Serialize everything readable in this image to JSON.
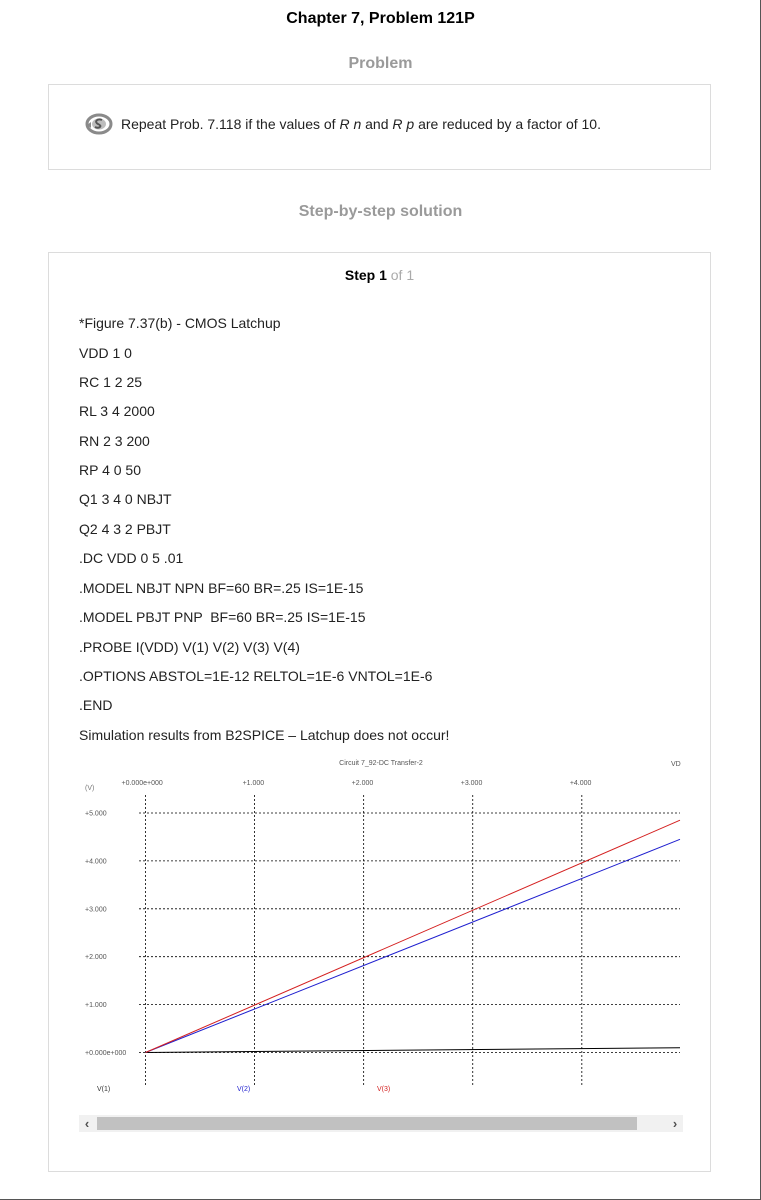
{
  "page": {
    "title": "Chapter 7, Problem 121P",
    "problem_heading": "Problem",
    "solution_heading": "Step-by-step solution"
  },
  "problem": {
    "icon": "solution-badge-icon",
    "text_a": "Repeat Prob. 7.118 if the values of ",
    "r": "R",
    "sub_n": "n",
    "text_and": " and ",
    "sub_p": "p",
    "text_b": " are reduced by a factor of 10."
  },
  "step": {
    "label": "Step 1",
    "of": " of 1"
  },
  "code_lines": [
    "*Figure 7.37(b) - CMOS Latchup",
    "VDD 1 0",
    "RC 1 2 25",
    "RL 3 4 2000",
    "RN 2 3 200",
    "RP 4 0 50",
    "Q1 3 4 0 NBJT",
    "Q2 4 3 2 PBJT",
    ".DC VDD 0 5 .01",
    ".MODEL NBJT NPN BF=60 BR=.25 IS=1E-15",
    ".MODEL PBJT PNP  BF=60 BR=.25 IS=1E-15",
    ".PROBE I(VDD) V(1) V(2) V(3) V(4)",
    ".OPTIONS ABSTOL=1E-12 RELTOL=1E-6 VNTOL=1E-6",
    ".END",
    "Simulation results from B2SPICE – Latchup does not occur!"
  ],
  "chart_data": {
    "type": "line",
    "title": "Circuit 7_92-DC Transfer-2",
    "corner_label": "VD",
    "ylabel": "(V)",
    "x_tick_labels": [
      "+0.000e+000",
      "+1.000",
      "+2.000",
      "+3.000",
      "+4.000"
    ],
    "y_tick_labels": [
      "+5.000",
      "+4.000",
      "+3.000",
      "+2.000",
      "+1.000",
      "+0.000e+000"
    ],
    "xlim": [
      -0.6,
      4.9
    ],
    "ylim": [
      -0.6,
      5.75
    ],
    "grid": true,
    "series": [
      {
        "name": "V(1)",
        "color": "#000000",
        "x": [
          0,
          4.9
        ],
        "y": [
          0,
          0.1
        ]
      },
      {
        "name": "V(2)",
        "color": "#1f1fcf",
        "x": [
          0,
          4.9
        ],
        "y": [
          0,
          4.45
        ]
      },
      {
        "name": "V(3)",
        "color": "#d42020",
        "x": [
          0,
          4.9
        ],
        "y": [
          0,
          4.85
        ]
      }
    ]
  },
  "scrollbar": {
    "left_arrow": "‹",
    "right_arrow": "›"
  }
}
